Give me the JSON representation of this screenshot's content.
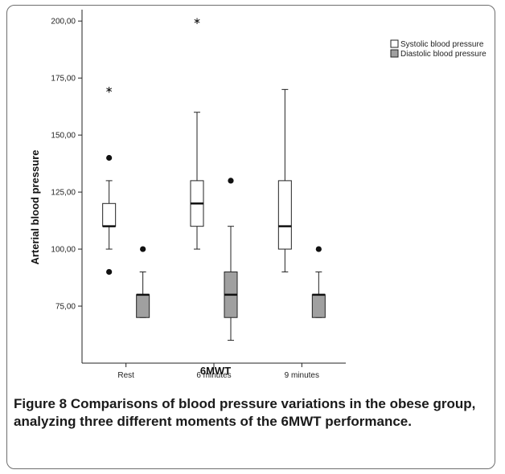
{
  "chart_data": {
    "type": "boxplot",
    "xlabel": "6MWT",
    "ylabel": "Arterial blood pressure",
    "categories": [
      "Rest",
      "6 minutes",
      "9 minutes"
    ],
    "ylim": [
      50,
      205
    ],
    "yticks": [
      75,
      100,
      125,
      150,
      175,
      200
    ],
    "ytick_labels": [
      "75,00",
      "100,00",
      "125,00",
      "150,00",
      "175,00",
      "200,00"
    ],
    "legend_position": "top-right",
    "series": [
      {
        "name": "Systolic blood pressure",
        "color": "#ffffff",
        "boxes": [
          {
            "whisker_low": 100,
            "q1": 110,
            "median": 110,
            "q3": 120,
            "whisker_high": 130,
            "outliers": [
              90,
              140
            ],
            "extremes": [
              170
            ]
          },
          {
            "whisker_low": 100,
            "q1": 110,
            "median": 120,
            "q3": 130,
            "whisker_high": 160,
            "outliers": [],
            "extremes": [
              200
            ]
          },
          {
            "whisker_low": 90,
            "q1": 100,
            "median": 110,
            "q3": 130,
            "whisker_high": 170,
            "outliers": [],
            "extremes": []
          }
        ]
      },
      {
        "name": "Diastolic blood pressure",
        "color": "#a0a0a0",
        "boxes": [
          {
            "whisker_low": 70,
            "q1": 70,
            "median": 80,
            "q3": 80,
            "whisker_high": 90,
            "outliers": [
              100
            ],
            "extremes": []
          },
          {
            "whisker_low": 60,
            "q1": 70,
            "median": 80,
            "q3": 90,
            "whisker_high": 110,
            "outliers": [
              130
            ],
            "extremes": []
          },
          {
            "whisker_low": 70,
            "q1": 70,
            "median": 80,
            "q3": 80,
            "whisker_high": 90,
            "outliers": [
              100
            ],
            "extremes": []
          }
        ]
      }
    ]
  },
  "caption": {
    "label": "Figure 8",
    "text": "Comparisons of blood pressure variations in the obese group, analyzing three different moments of the 6MWT performance."
  }
}
